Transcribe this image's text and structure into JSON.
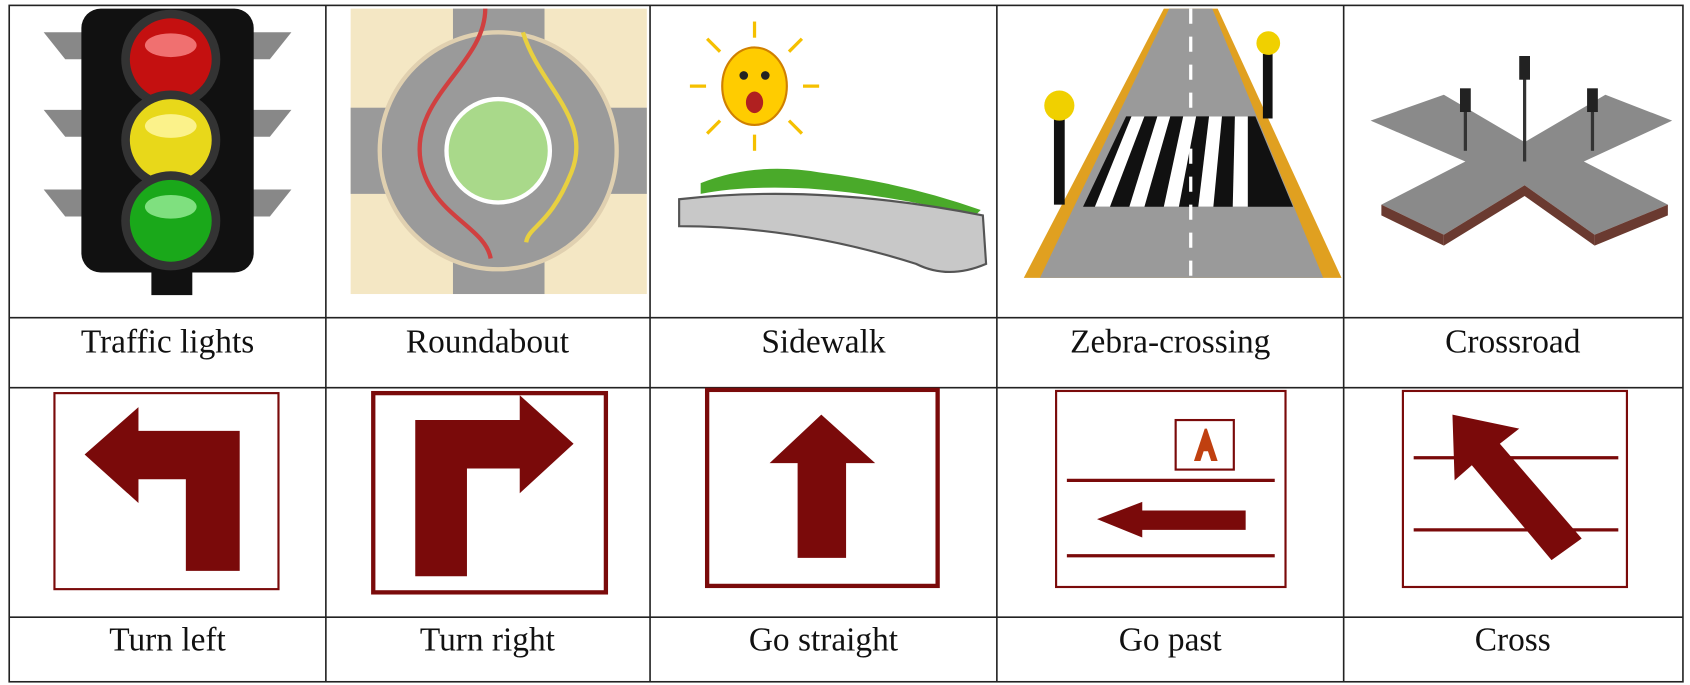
{
  "table": {
    "rows": [
      [
        "Traffic lights",
        "Roundabout",
        "Sidewalk",
        "Zebra-crossing",
        "Crossroad"
      ],
      [
        "Turn left",
        "Turn right",
        "Go straight",
        "Go past",
        "Cross"
      ]
    ]
  }
}
